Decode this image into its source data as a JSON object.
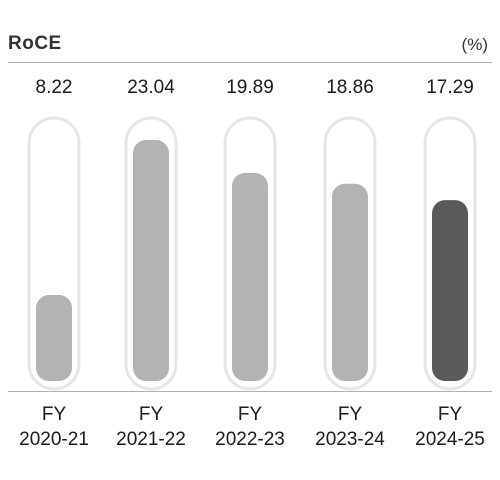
{
  "chart_data": {
    "type": "bar",
    "title": "RoCE",
    "unit_label": "(%)",
    "categories": [
      [
        "FY",
        "2020-21"
      ],
      [
        "FY",
        "2021-22"
      ],
      [
        "FY",
        "2022-23"
      ],
      [
        "FY",
        "2023-24"
      ],
      [
        "FY",
        "2024-25"
      ]
    ],
    "values": [
      8.22,
      23.04,
      19.89,
      18.86,
      17.29
    ],
    "value_labels": [
      "8.22",
      "23.04",
      "19.89",
      "18.86",
      "17.29"
    ],
    "ylim": [
      0,
      24
    ],
    "grid": false,
    "legend": "none",
    "colors": {
      "bar": "#b3b3b3",
      "highlight_bar": "#5a5a5a",
      "track": "#ffffff",
      "track_border": "#e6e6e6",
      "text": "#1a1a1a",
      "rule": "#b0b0b0"
    },
    "highlight_index": 4
  }
}
